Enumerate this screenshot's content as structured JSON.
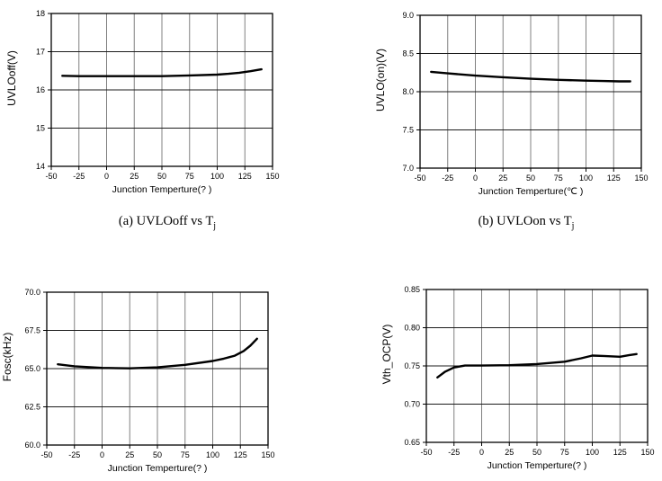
{
  "style": {
    "background": "#ffffff",
    "curve": "#000000",
    "axis": "#000000",
    "text": "#000000",
    "grid_vertical": "#808080",
    "grid_horizontal": "#1c1c1c"
  },
  "chart_data": [
    {
      "type": "line",
      "panel": "a",
      "ylabel": "UVLOoff(V)",
      "xlabel": "Junction Temperture(?  )",
      "xlim": [
        -50,
        150
      ],
      "ylim": [
        14,
        18
      ],
      "xticks": [
        -50,
        -25,
        0,
        25,
        50,
        75,
        100,
        125,
        150
      ],
      "xtick_labels": [
        "-50",
        "-25",
        "0",
        "25",
        "50",
        "75",
        "100",
        "125",
        "150"
      ],
      "yticks": [
        14,
        15,
        16,
        17,
        18
      ],
      "ytick_labels": [
        "14",
        "15",
        "16",
        "17",
        "18"
      ],
      "grid": true,
      "legend": "none",
      "series": [
        {
          "name": "UVLOoff",
          "x": [
            -40,
            -25,
            0,
            25,
            50,
            75,
            100,
            110,
            120,
            130,
            140
          ],
          "y": [
            16.37,
            16.36,
            16.36,
            16.36,
            16.36,
            16.38,
            16.4,
            16.42,
            16.45,
            16.49,
            16.54
          ]
        }
      ],
      "caption": {
        "prefix": "(a)",
        "main": " UVLOoff vs T",
        "sub": "j"
      }
    },
    {
      "type": "line",
      "panel": "b",
      "ylabel": "UVLO(on)(V)",
      "xlabel": "Junction Temperture(℃ )",
      "xlim": [
        -50,
        150
      ],
      "ylim": [
        7.0,
        9.0
      ],
      "xticks": [
        -50,
        -25,
        0,
        25,
        50,
        75,
        100,
        125,
        150
      ],
      "xtick_labels": [
        "-50",
        "-25",
        "0",
        "25",
        "50",
        "75",
        "100",
        "125",
        "150"
      ],
      "yticks": [
        7.0,
        7.5,
        8.0,
        8.5,
        9.0
      ],
      "ytick_labels": [
        "7.0",
        "7.5",
        "8.0",
        "8.5",
        "9.0"
      ],
      "grid": true,
      "legend": "none",
      "series": [
        {
          "name": "UVLOon",
          "x": [
            -40,
            -25,
            0,
            25,
            50,
            75,
            100,
            115,
            130,
            140
          ],
          "y": [
            8.26,
            8.24,
            8.21,
            8.19,
            8.17,
            8.155,
            8.145,
            8.14,
            8.135,
            8.135
          ]
        }
      ],
      "caption": {
        "prefix": "(b)",
        "main": " UVLOon vs T",
        "sub": "j"
      }
    },
    {
      "type": "line",
      "panel": "c",
      "ylabel": "Fosc(kHz)",
      "xlabel": "Junction Temperture(?  )",
      "xlim": [
        -50,
        150
      ],
      "ylim": [
        60.0,
        70.0
      ],
      "xticks": [
        -50,
        -25,
        0,
        25,
        50,
        75,
        100,
        125,
        150
      ],
      "xtick_labels": [
        "-50",
        "-25",
        "0",
        "25",
        "50",
        "75",
        "100",
        "125",
        "150"
      ],
      "yticks": [
        60.0,
        62.5,
        65.0,
        67.5,
        70.0
      ],
      "ytick_labels": [
        "60.0",
        "62.5",
        "65.0",
        "67.5",
        "70.0"
      ],
      "grid": true,
      "legend": "none",
      "series": [
        {
          "name": "Fosc",
          "x": [
            -40,
            -25,
            0,
            25,
            50,
            75,
            100,
            110,
            120,
            128,
            134,
            140
          ],
          "y": [
            65.28,
            65.15,
            65.05,
            65.02,
            65.08,
            65.25,
            65.5,
            65.65,
            65.85,
            66.15,
            66.5,
            66.95
          ]
        }
      ],
      "caption": null
    },
    {
      "type": "line",
      "panel": "d",
      "ylabel": "Vth_OCP(V)",
      "xlabel": "Junction Temperture(?  )",
      "xlim": [
        -50,
        150
      ],
      "ylim": [
        0.65,
        0.85
      ],
      "xticks": [
        -50,
        -25,
        0,
        25,
        50,
        75,
        100,
        125,
        150
      ],
      "xtick_labels": [
        "-50",
        "-25",
        "0",
        "25",
        "50",
        "75",
        "100",
        "125",
        "150"
      ],
      "yticks": [
        0.65,
        0.7,
        0.75,
        0.8,
        0.85
      ],
      "ytick_labels": [
        "0.65",
        "0.70",
        "0.75",
        "0.80",
        "0.85"
      ],
      "grid": true,
      "legend": "none",
      "series": [
        {
          "name": "Vth_OCP",
          "x": [
            -40,
            -33,
            -25,
            -15,
            0,
            25,
            50,
            75,
            90,
            100,
            110,
            125,
            133,
            140
          ],
          "y": [
            0.735,
            0.7425,
            0.748,
            0.7505,
            0.7505,
            0.751,
            0.7525,
            0.7555,
            0.76,
            0.7635,
            0.763,
            0.762,
            0.764,
            0.7655
          ]
        }
      ],
      "caption": null
    }
  ]
}
